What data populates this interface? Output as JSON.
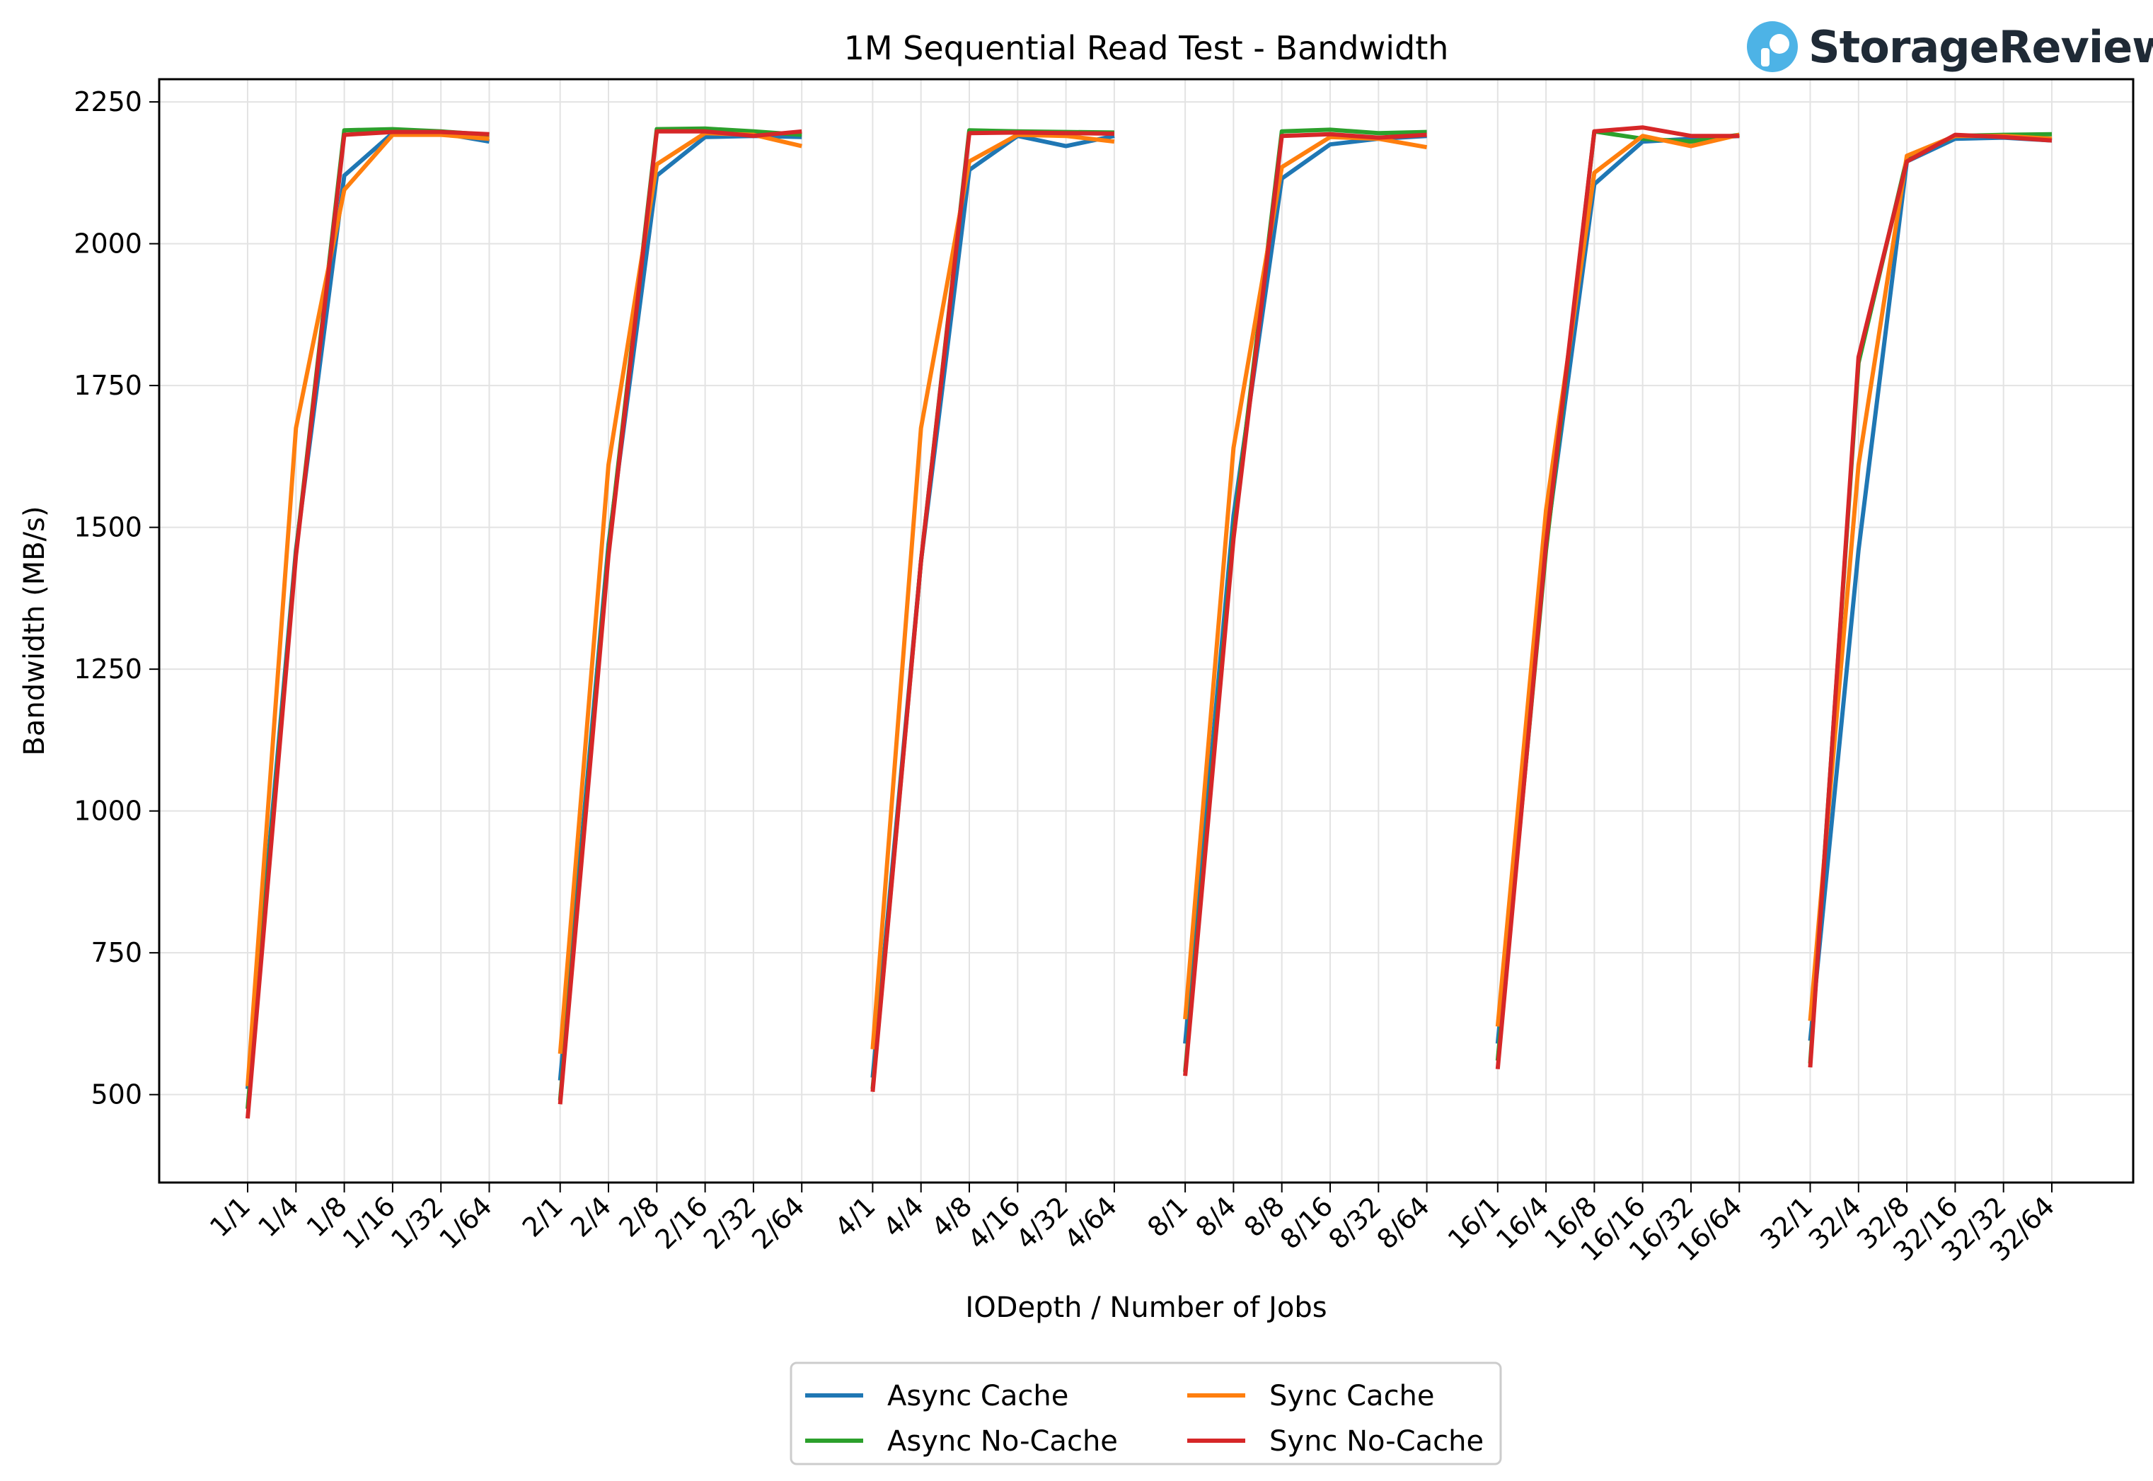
{
  "brand": {
    "name": "StorageReview",
    "color": "#4db3e6"
  },
  "chart_data": {
    "type": "line",
    "title": "1M Sequential Read Test - Bandwidth",
    "xlabel": "IODepth / Number of Jobs",
    "ylabel": "Bandwidth (MB/s)",
    "ylim": [
      345,
      2290
    ],
    "yticks": [
      500,
      750,
      1000,
      1250,
      1500,
      1750,
      2000,
      2250
    ],
    "grid": true,
    "legend_position": "bottom-center",
    "categories": [
      "1/1",
      "1/4",
      "1/8",
      "1/16",
      "1/32",
      "1/64",
      "2/1",
      "2/4",
      "2/8",
      "2/16",
      "2/32",
      "2/64",
      "4/1",
      "4/4",
      "4/8",
      "4/16",
      "4/32",
      "4/64",
      "8/1",
      "8/4",
      "8/8",
      "8/16",
      "8/32",
      "8/64",
      "16/1",
      "16/4",
      "16/8",
      "16/16",
      "16/32",
      "16/64",
      "32/1",
      "32/4",
      "32/8",
      "32/16",
      "32/32",
      "32/64"
    ],
    "groups": 6,
    "points_per_group": 6,
    "series": [
      {
        "name": "Async Cache",
        "color": "#1f77b4",
        "values": [
          510,
          1460,
          2120,
          2195,
          2195,
          2180,
          525,
          1470,
          2120,
          2188,
          2190,
          2188,
          530,
          1440,
          2130,
          2190,
          2172,
          2190,
          590,
          1520,
          2115,
          2175,
          2185,
          2190,
          590,
          1470,
          2105,
          2180,
          2185,
          2190,
          595,
          1460,
          2145,
          2185,
          2187,
          2182
        ]
      },
      {
        "name": "Async No-Cache",
        "color": "#2ca02c",
        "values": [
          475,
          1455,
          2200,
          2202,
          2198,
          2192,
          490,
          1460,
          2202,
          2203,
          2198,
          2192,
          510,
          1440,
          2200,
          2198,
          2197,
          2196,
          540,
          1490,
          2198,
          2201,
          2195,
          2197,
          560,
          1460,
          2198,
          2185,
          2180,
          2192,
          555,
          1790,
          2150,
          2190,
          2192,
          2193
        ]
      },
      {
        "name": "Sync Cache",
        "color": "#ff7f0e",
        "values": [
          515,
          1675,
          2095,
          2192,
          2192,
          2185,
          572,
          1610,
          2140,
          2195,
          2192,
          2172,
          580,
          1675,
          2145,
          2192,
          2190,
          2180,
          633,
          1640,
          2135,
          2188,
          2185,
          2170,
          620,
          1530,
          2125,
          2190,
          2172,
          2192,
          630,
          1610,
          2155,
          2190,
          2190,
          2185
        ]
      },
      {
        "name": "Sync No-Cache",
        "color": "#d62728",
        "values": [
          458,
          1450,
          2192,
          2197,
          2197,
          2193,
          483,
          1450,
          2198,
          2198,
          2190,
          2198,
          505,
          1440,
          2195,
          2196,
          2195,
          2194,
          533,
          1480,
          2190,
          2193,
          2187,
          2192,
          545,
          1470,
          2198,
          2205,
          2190,
          2190,
          548,
          1800,
          2145,
          2192,
          2188,
          2182
        ]
      }
    ]
  }
}
